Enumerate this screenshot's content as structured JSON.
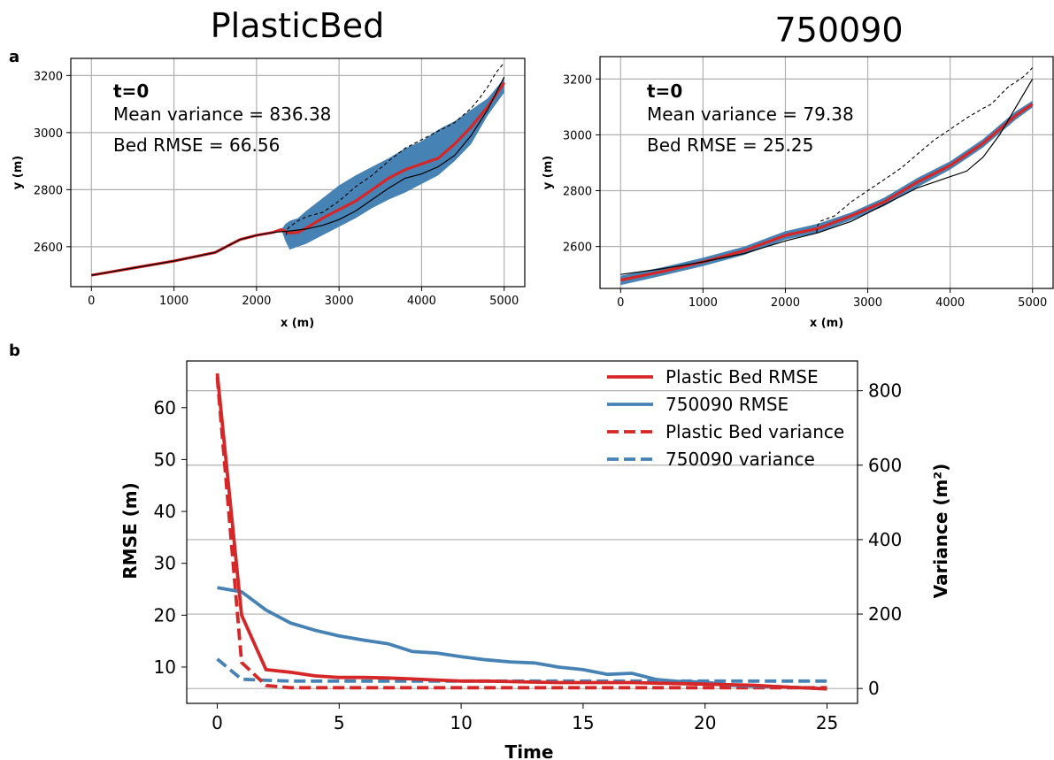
{
  "panel_letters": {
    "a": "a",
    "b": "b"
  },
  "colors": {
    "red": "#d62728",
    "blue": "#4682b4",
    "black": "#000000",
    "grid": "#b0b0b0"
  },
  "chart_data": [
    {
      "type": "line",
      "title": "PlasticBed",
      "xlabel": "x (m)",
      "ylabel": "y (m)",
      "xlim": [
        -250,
        5250
      ],
      "ylim": [
        2460,
        3260
      ],
      "xticks": [
        0,
        1000,
        2000,
        3000,
        4000,
        5000
      ],
      "yticks": [
        2600,
        2800,
        3000,
        3200
      ],
      "grid": true,
      "annotations": {
        "time": "t=0",
        "variance": "Mean variance = 836.38",
        "rmse": "Bed RMSE = 66.56"
      },
      "true_bed": {
        "x": [
          0,
          500,
          1000,
          1500,
          1700,
          1800,
          2000,
          2200,
          2400,
          2600,
          2800,
          3000,
          3200,
          3400,
          3600,
          3800,
          4000,
          4200,
          4400,
          4600,
          4800,
          5000
        ],
        "y": [
          2500,
          2525,
          2550,
          2580,
          2610,
          2625,
          2640,
          2650,
          2655,
          2662,
          2675,
          2695,
          2725,
          2765,
          2805,
          2840,
          2855,
          2880,
          2920,
          2990,
          3080,
          3195
        ]
      },
      "surface": {
        "x": [
          2360,
          2370,
          2400,
          2500,
          2600,
          2800,
          3000,
          3200,
          3400,
          3600,
          3800,
          4000,
          4200,
          4400,
          4500,
          4600,
          4700,
          4800,
          4900,
          5000
        ],
        "y": [
          2640,
          2660,
          2670,
          2690,
          2705,
          2720,
          2760,
          2810,
          2850,
          2900,
          2945,
          2975,
          3005,
          3035,
          3060,
          3085,
          3120,
          3160,
          3210,
          3245
        ]
      },
      "ensemble_mean": {
        "x": [
          0,
          500,
          1000,
          1500,
          1700,
          1800,
          2000,
          2200,
          2300,
          2400,
          2500,
          2600,
          2800,
          3000,
          3200,
          3400,
          3600,
          3800,
          4000,
          4200,
          4400,
          4600,
          4800,
          5000
        ],
        "y": [
          2500,
          2525,
          2550,
          2580,
          2610,
          2625,
          2640,
          2650,
          2660,
          2648,
          2650,
          2665,
          2700,
          2730,
          2760,
          2800,
          2840,
          2870,
          2890,
          2910,
          2960,
          3020,
          3090,
          3175
        ]
      },
      "ensemble_spread": {
        "x": [
          2300,
          2350,
          2400,
          2500,
          2600,
          2800,
          3000,
          3200,
          3400,
          3600,
          3800,
          4000,
          4200,
          4400,
          4600,
          4800,
          5000
        ],
        "upper": [
          2660,
          2680,
          2690,
          2700,
          2725,
          2770,
          2815,
          2850,
          2880,
          2910,
          2945,
          2970,
          3010,
          3040,
          3080,
          3120,
          3190
        ],
        "lower": [
          2660,
          2620,
          2590,
          2600,
          2610,
          2640,
          2670,
          2700,
          2735,
          2765,
          2790,
          2820,
          2850,
          2900,
          2960,
          3060,
          3140
        ]
      }
    },
    {
      "type": "line",
      "title": "750090",
      "xlabel": "x (m)",
      "ylabel": "y (m)",
      "xlim": [
        -250,
        5250
      ],
      "ylim": [
        2450,
        3280
      ],
      "xticks": [
        0,
        1000,
        2000,
        3000,
        4000,
        5000
      ],
      "yticks": [
        2600,
        2800,
        3000,
        3200
      ],
      "grid": true,
      "annotations": {
        "time": "t=0",
        "variance": "Mean variance = 79.38",
        "rmse": "Bed RMSE = 25.25"
      },
      "true_bed": {
        "x": [
          0,
          500,
          1000,
          1500,
          2000,
          2400,
          2800,
          3200,
          3600,
          4000,
          4200,
          4400,
          4600,
          4800,
          5000
        ],
        "y": [
          2500,
          2520,
          2545,
          2575,
          2620,
          2650,
          2690,
          2750,
          2810,
          2850,
          2870,
          2920,
          3000,
          3100,
          3200
        ]
      },
      "surface": {
        "x": [
          2380,
          2390,
          2420,
          2600,
          2800,
          3000,
          3200,
          3400,
          3600,
          3800,
          4000,
          4200,
          4400,
          4500,
          4600,
          4700,
          4800,
          4900,
          5000
        ],
        "y": [
          2650,
          2675,
          2690,
          2710,
          2760,
          2800,
          2840,
          2880,
          2930,
          2980,
          3020,
          3060,
          3095,
          3110,
          3140,
          3170,
          3190,
          3210,
          3240
        ]
      },
      "ensemble_mean": {
        "x": [
          0,
          500,
          1000,
          1500,
          2000,
          2400,
          2800,
          3200,
          3600,
          4000,
          4200,
          4400,
          4600,
          4800,
          5000
        ],
        "y": [
          2480,
          2510,
          2545,
          2585,
          2640,
          2665,
          2710,
          2760,
          2830,
          2890,
          2930,
          2970,
          3020,
          3070,
          3110
        ]
      },
      "ensemble_spread": {
        "x": [
          0,
          500,
          1000,
          1500,
          2000,
          2400,
          2800,
          3200,
          3600,
          4000,
          4200,
          4400,
          4600,
          4800,
          5000
        ],
        "upper": [
          2495,
          2525,
          2560,
          2600,
          2655,
          2682,
          2722,
          2775,
          2845,
          2905,
          2945,
          2985,
          3035,
          3085,
          3122
        ],
        "lower": [
          2462,
          2495,
          2530,
          2570,
          2625,
          2650,
          2695,
          2745,
          2812,
          2875,
          2915,
          2955,
          3005,
          3055,
          3098
        ]
      }
    },
    {
      "type": "line",
      "xlabel": "Time",
      "ylabel": "RMSE (m)",
      "ylabel_right": "Variance (m²)",
      "xlim": [
        -1.25,
        26.25
      ],
      "ylim": [
        3,
        69
      ],
      "ylim_right": [
        -40,
        880
      ],
      "xticks": [
        0,
        5,
        10,
        15,
        20,
        25
      ],
      "yticks": [
        10,
        20,
        30,
        40,
        50,
        60
      ],
      "yticks_right": [
        0,
        200,
        400,
        600,
        800
      ],
      "grid": true,
      "legend_position": "top-right",
      "series": [
        {
          "name": "Plastic Bed RMSE",
          "axis": "left",
          "style": "solid",
          "color": "#d62728",
          "x": [
            0,
            1,
            2,
            3,
            4,
            5,
            6,
            7,
            8,
            9,
            10,
            11,
            12,
            13,
            14,
            15,
            16,
            17,
            18,
            19,
            20,
            21,
            22,
            23,
            24,
            25
          ],
          "y": [
            66.6,
            20,
            9.5,
            9,
            8.3,
            8,
            8,
            7.9,
            7.7,
            7.5,
            7.3,
            7.3,
            7.2,
            7.1,
            7.0,
            7.0,
            7.0,
            7.0,
            6.9,
            6.8,
            6.7,
            6.6,
            6.5,
            6.2,
            6.0,
            5.8
          ]
        },
        {
          "name": "750090 RMSE",
          "axis": "left",
          "style": "solid",
          "color": "#4682b4",
          "x": [
            0,
            1,
            2,
            3,
            4,
            5,
            6,
            7,
            8,
            9,
            10,
            11,
            12,
            13,
            14,
            15,
            16,
            17,
            18,
            19,
            20,
            21,
            22,
            23,
            24,
            25
          ],
          "y": [
            25.3,
            24.5,
            21,
            18.5,
            17.1,
            16,
            15.2,
            14.5,
            13,
            12.7,
            12,
            11.4,
            11,
            10.8,
            10,
            9.5,
            8.6,
            8.8,
            7.6,
            7.2,
            7.1,
            6.5,
            6.3,
            6.2,
            6.0,
            5.8
          ]
        },
        {
          "name": "Plastic Bed variance",
          "axis": "right",
          "style": "dashed",
          "color": "#d62728",
          "x": [
            0,
            1,
            2,
            3,
            4,
            5,
            6,
            7,
            8,
            9,
            10,
            11,
            12,
            13,
            14,
            15,
            16,
            17,
            18,
            19,
            20,
            21,
            22,
            23,
            24,
            25
          ],
          "y": [
            836,
            70,
            8,
            2,
            2,
            2,
            2,
            2,
            2,
            2,
            2,
            2,
            2,
            2,
            2,
            2,
            2,
            2,
            2,
            2,
            2,
            2,
            2,
            2,
            2,
            2
          ]
        },
        {
          "name": "750090 variance",
          "axis": "right",
          "style": "dashed",
          "color": "#4682b4",
          "x": [
            0,
            1,
            2,
            3,
            4,
            5,
            6,
            7,
            8,
            9,
            10,
            11,
            12,
            13,
            14,
            15,
            16,
            17,
            18,
            19,
            20,
            21,
            22,
            23,
            24,
            25
          ],
          "y": [
            79,
            25,
            22,
            20,
            20,
            20,
            20,
            20,
            20,
            20,
            20,
            20,
            20,
            20,
            20,
            20,
            20,
            20,
            20,
            20,
            20,
            20,
            20,
            20,
            20,
            20
          ]
        }
      ]
    }
  ]
}
